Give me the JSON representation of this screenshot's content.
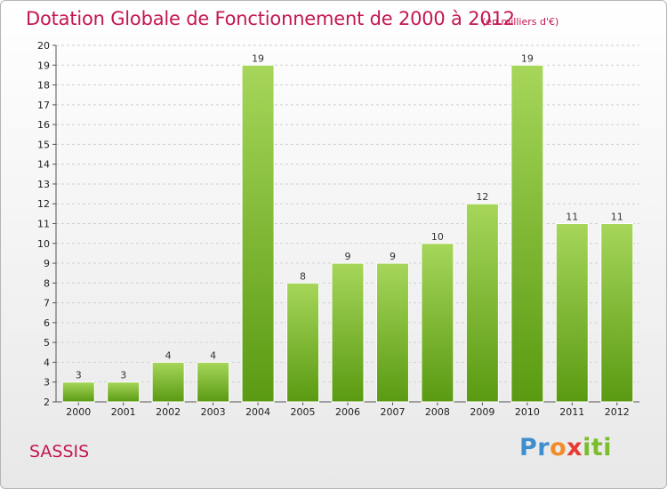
{
  "title": "Dotation Globale de Fonctionnement de 2000 à 2012",
  "subtitle": "(en milliers d'€)",
  "commune": "SASSIS",
  "brand": [
    "Pr",
    "o",
    "x",
    "iti"
  ],
  "colors": {
    "title": "#c4174f",
    "bar_light": "#a6d65a",
    "bar_dark": "#5a9a12",
    "grid": "#d0d0d0"
  },
  "chart_data": {
    "type": "bar",
    "title": "Dotation Globale de Fonctionnement de 2000 à 2012",
    "subtitle": "(en milliers d'€)",
    "categories": [
      "2000",
      "2001",
      "2002",
      "2003",
      "2004",
      "2005",
      "2006",
      "2007",
      "2008",
      "2009",
      "2010",
      "2011",
      "2012"
    ],
    "values": [
      3,
      3,
      4,
      4,
      19,
      8,
      9,
      9,
      10,
      12,
      19,
      11,
      11
    ],
    "ylim": [
      2,
      20
    ],
    "yticks": [
      2,
      3,
      4,
      5,
      6,
      7,
      8,
      9,
      10,
      11,
      12,
      13,
      14,
      15,
      16,
      17,
      18,
      19,
      20
    ],
    "grid": true,
    "legend": "none"
  }
}
